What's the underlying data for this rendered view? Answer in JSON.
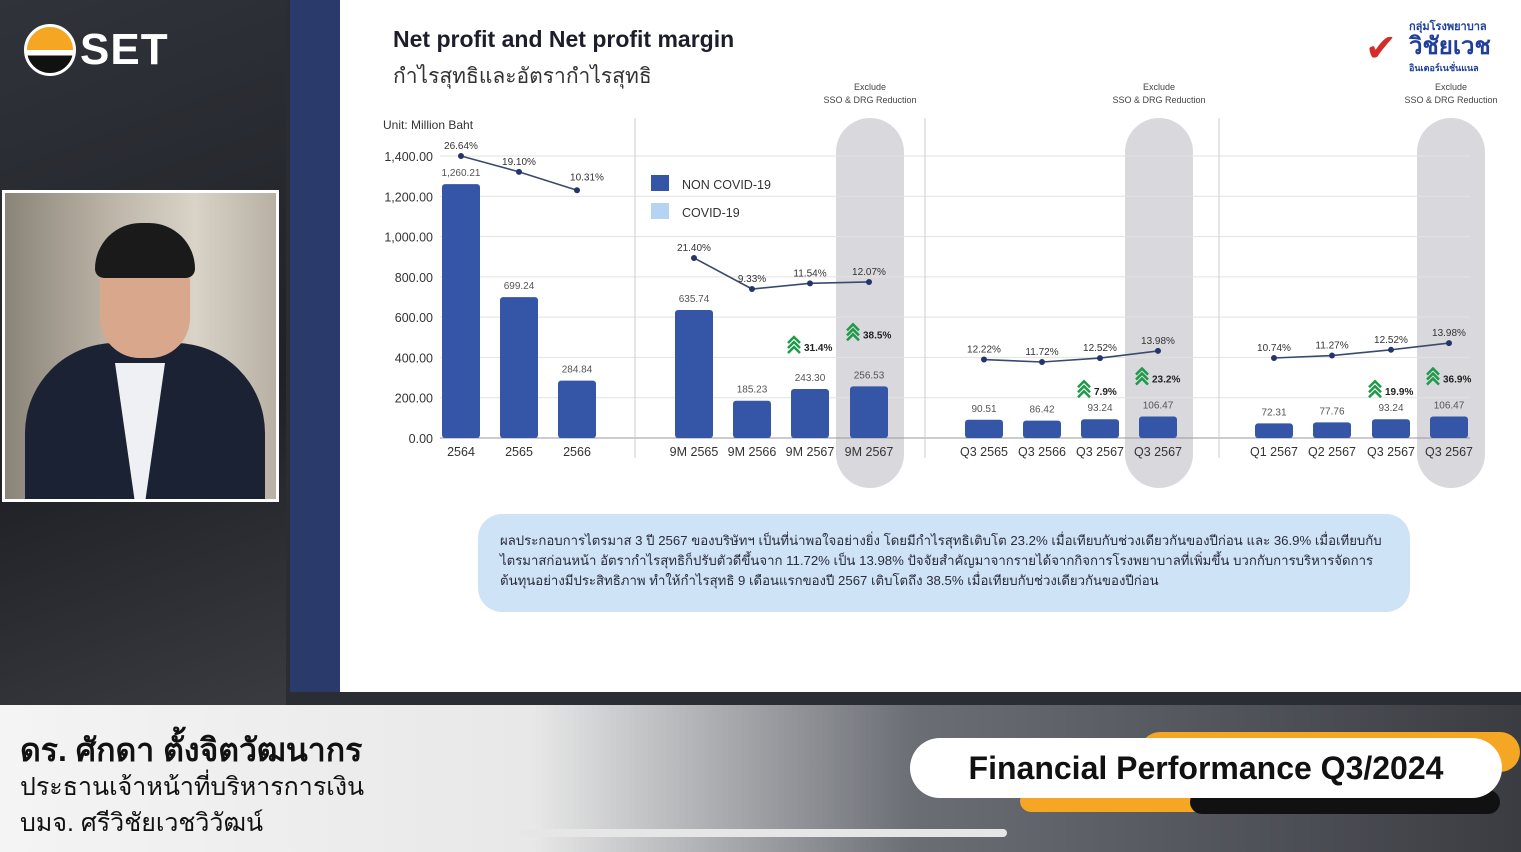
{
  "broadcast": {
    "logo_text": "SET"
  },
  "slide": {
    "title": "Net profit and Net profit margin",
    "subtitle": "กำไรสุทธิและอัตรากำไรสุทธิ",
    "brand": {
      "line1": "กลุ่มโรงพยาบาล",
      "line2": "วิชัยเวช",
      "line3": "อินเตอร์เนชั่นแนล"
    },
    "note": "ผลประกอบการไตรมาส 3 ปี 2567 ของบริษัทฯ เป็นที่น่าพอใจอย่างยิ่ง โดยมีกำไรสุทธิเติบโต 23.2% เมื่อเทียบกับช่วงเดียวกันของปีก่อน และ 36.9% เมื่อเทียบกับไตรมาสก่อนหน้า อัตรากำไรสุทธิก็ปรับตัวดีขึ้นจาก 11.72% เป็น 13.98% ปัจจัยสำคัญมาจากรายได้จากกิจการโรงพยาบาลที่เพิ่มขึ้น บวกกับการบริหารจัดการต้นทุนอย่างมีประสิทธิภาพ ทำให้กำไรสุทธิ 9 เดือนแรกของปี 2567 เติบโตถึง 38.5% เมื่อเทียบกับช่วงเดียวกันของปีก่อน"
  },
  "chart_data": {
    "type": "bar",
    "unit_label": "Unit: Million Baht",
    "ylim": [
      0,
      1400
    ],
    "yticks": [
      "0.00",
      "200.00",
      "400.00",
      "600.00",
      "800.00",
      "1,000.00",
      "1,200.00",
      "1,400.00"
    ],
    "legend": [
      {
        "name": "NON COVID-19",
        "color": "#3556a6"
      },
      {
        "name": "COVID-19",
        "color": "#b5d3f3"
      }
    ],
    "highlight_label": [
      "Exclude",
      "SSO & DRG Reduction"
    ],
    "groups": [
      {
        "categories": [
          "2564",
          "2565",
          "2566"
        ],
        "values": [
          1260.21,
          699.24,
          284.84
        ],
        "value_labels": [
          "1,260.21",
          "699.24",
          "284.84"
        ],
        "margins": [
          "26.64%",
          "19.10%",
          "10.31%"
        ],
        "margin_values": [
          26.64,
          19.1,
          10.31
        ],
        "growth": [],
        "highlight": false
      },
      {
        "categories": [
          "9M 2565",
          "9M 2566",
          "9M 2567",
          "9M 2567"
        ],
        "values": [
          635.74,
          185.23,
          243.3,
          256.53
        ],
        "value_labels": [
          "635.74",
          "185.23",
          "243.30",
          "256.53"
        ],
        "margins": [
          "21.40%",
          "9.33%",
          "11.54%",
          "12.07%"
        ],
        "margin_values": [
          21.4,
          9.33,
          11.54,
          12.07
        ],
        "growth": [
          {
            "index": 2,
            "label": "31.4%"
          },
          {
            "index": 3,
            "label": "38.5%"
          }
        ],
        "highlight": true
      },
      {
        "categories": [
          "Q3 2565",
          "Q3 2566",
          "Q3 2567",
          "Q3 2567"
        ],
        "values": [
          90.51,
          86.42,
          93.24,
          106.47
        ],
        "value_labels": [
          "90.51",
          "86.42",
          "93.24",
          "106.47"
        ],
        "margins": [
          "12.22%",
          "11.72%",
          "12.52%",
          "13.98%"
        ],
        "margin_values": [
          12.22,
          11.72,
          12.52,
          13.98
        ],
        "growth": [
          {
            "index": 2,
            "label": "7.9%"
          },
          {
            "index": 3,
            "label": "23.2%"
          }
        ],
        "highlight": true
      },
      {
        "categories": [
          "Q1 2567",
          "Q2 2567",
          "Q3 2567",
          "Q3 2567"
        ],
        "values": [
          72.31,
          77.76,
          93.24,
          106.47
        ],
        "value_labels": [
          "72.31",
          "77.76",
          "93.24",
          "106.47"
        ],
        "margins": [
          "10.74%",
          "11.27%",
          "12.52%",
          "13.98%"
        ],
        "margin_values": [
          10.74,
          11.27,
          12.52,
          13.98
        ],
        "growth": [
          {
            "index": 2,
            "label": "19.9%"
          },
          {
            "index": 3,
            "label": "36.9%"
          }
        ],
        "highlight": true
      }
    ],
    "colors": {
      "bar": "#3556a6",
      "line": "#3a4a6e",
      "growth": "#1f9a4a",
      "highlight": "#d9d9dd"
    }
  },
  "lower_third": {
    "name": "ดร. ศักดา ตั้งจิตวัฒนากร",
    "role": "ประธานเจ้าหน้าที่บริหารการเงิน",
    "company": "บมจ. ศรีวิชัยเวชวิวัฒน์",
    "segment_title": "Financial Performance Q3/2024"
  }
}
